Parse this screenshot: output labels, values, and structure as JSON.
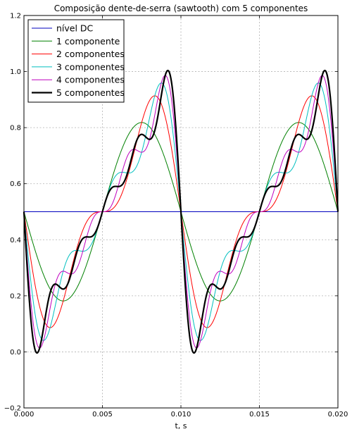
{
  "chart_data": {
    "type": "line",
    "title": "Composição dente-de-serra (sawtooth) com 5 componentes",
    "xlabel": "t, s",
    "ylabel": "",
    "xlim": [
      0.0,
      0.02
    ],
    "ylim": [
      -0.2,
      1.2
    ],
    "x_ticks": [
      "0.000",
      "0.005",
      "0.010",
      "0.015",
      "0.020"
    ],
    "y_ticks": [
      "−0.2",
      "0.0",
      "0.2",
      "0.4",
      "0.6",
      "0.8",
      "1.0",
      "1.2"
    ],
    "grid": true,
    "legend_position": "top-left",
    "signal": {
      "period": 0.01,
      "dc": 0.5,
      "harmonic_amplitude_factor": 0.3183
    },
    "series": [
      {
        "name": "nível DC",
        "components": 0,
        "color": "#0000bf",
        "line_width": 1
      },
      {
        "name": "1 componente",
        "components": 1,
        "color": "#008000",
        "line_width": 1
      },
      {
        "name": "2 componentes",
        "components": 2,
        "color": "#ff0000",
        "line_width": 1
      },
      {
        "name": "3 componentes",
        "components": 3,
        "color": "#00bfbf",
        "line_width": 1
      },
      {
        "name": "4 componentes",
        "components": 4,
        "color": "#bf00bf",
        "line_width": 1
      },
      {
        "name": "5 componentes",
        "components": 5,
        "color": "#000000",
        "line_width": 2.2
      }
    ]
  }
}
